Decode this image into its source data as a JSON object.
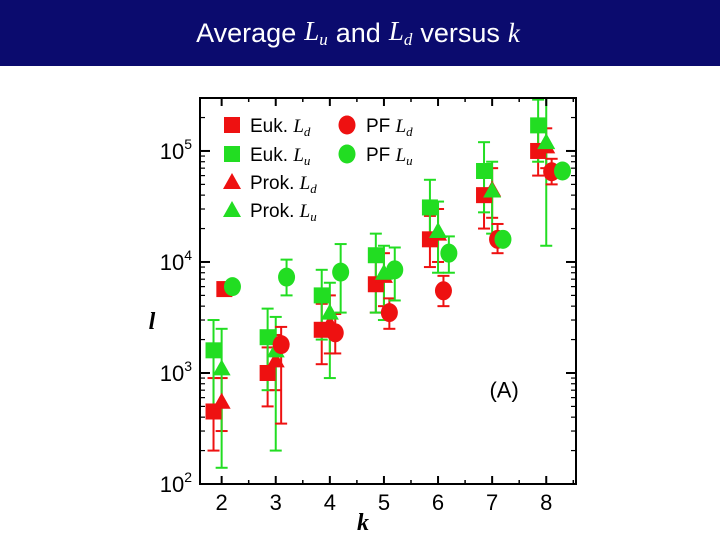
{
  "slide": {
    "title_word1": "Average",
    "title_var1": "L",
    "title_sub1": "u",
    "title_word2": "and",
    "title_var2": "L",
    "title_sub2": "d",
    "title_word3": "versus",
    "title_var3": "k"
  },
  "chart_data": {
    "type": "scatter",
    "title": "",
    "xlabel": "k",
    "ylabel": "l",
    "annotation": "(A)",
    "xlim": [
      1.6,
      8.55
    ],
    "ylim": [
      100,
      300000
    ],
    "yscale": "log",
    "xticks": [
      2,
      3,
      4,
      5,
      6,
      7,
      8
    ],
    "yticks": [
      {
        "value": 100,
        "base": "10",
        "exp": "2"
      },
      {
        "value": 1000,
        "base": "10",
        "exp": "3"
      },
      {
        "value": 10000,
        "base": "10",
        "exp": "4"
      },
      {
        "value": 100000,
        "base": "10",
        "exp": "5"
      }
    ],
    "grid": false,
    "legend_position": "top-left",
    "series": [
      {
        "name": "Euk. Ld",
        "label": "Euk.",
        "sym": "L",
        "sub": "d",
        "marker": "square",
        "color": "#ee1111",
        "points": [
          {
            "x": 1.85,
            "y": 450,
            "lo": 200,
            "hi": 900
          },
          {
            "x": 2.05,
            "y": 5700,
            "lo": 5000,
            "hi": 6500
          },
          {
            "x": 2.85,
            "y": 1000,
            "lo": 500,
            "hi": 1700
          },
          {
            "x": 3.85,
            "y": 2450,
            "lo": 1200,
            "hi": 4200
          },
          {
            "x": 4.85,
            "y": 6300,
            "lo": 3500,
            "hi": 10000
          },
          {
            "x": 5.85,
            "y": 16000,
            "lo": 9000,
            "hi": 26000
          },
          {
            "x": 6.85,
            "y": 40000,
            "lo": 20000,
            "hi": 60000
          },
          {
            "x": 7.85,
            "y": 100000,
            "lo": 60000,
            "hi": 150000
          }
        ]
      },
      {
        "name": "Euk. Lu",
        "label": "Euk.",
        "sym": "L",
        "sub": "u",
        "marker": "square",
        "color": "#22dd22",
        "points": [
          {
            "x": 1.85,
            "y": 1600,
            "lo": 500,
            "hi": 3000
          },
          {
            "x": 2.85,
            "y": 2100,
            "lo": 700,
            "hi": 3800
          },
          {
            "x": 3.85,
            "y": 5000,
            "lo": 2000,
            "hi": 8500
          },
          {
            "x": 4.85,
            "y": 11500,
            "lo": 3500,
            "hi": 18000
          },
          {
            "x": 5.85,
            "y": 31000,
            "lo": 15000,
            "hi": 55000
          },
          {
            "x": 6.85,
            "y": 66000,
            "lo": 28000,
            "hi": 120000
          },
          {
            "x": 7.85,
            "y": 170000,
            "lo": 80000,
            "hi": 290000
          }
        ]
      },
      {
        "name": "Prok. Ld",
        "label": "Prok.",
        "sym": "L",
        "sub": "d",
        "marker": "triangle",
        "color": "#ee1111",
        "points": [
          {
            "x": 2.0,
            "y": 550,
            "lo": 300,
            "hi": 900
          },
          {
            "x": 3.0,
            "y": 1300,
            "lo": 700,
            "hi": 2200
          },
          {
            "x": 4.0,
            "y": 2800,
            "lo": 1500,
            "hi": 5000
          },
          {
            "x": 5.0,
            "y": 7500,
            "lo": 4000,
            "hi": 12000
          },
          {
            "x": 6.0,
            "y": 18000,
            "lo": 10000,
            "hi": 30000
          },
          {
            "x": 7.0,
            "y": 45000,
            "lo": 25000,
            "hi": 70000
          },
          {
            "x": 8.0,
            "y": 110000,
            "lo": 70000,
            "hi": 160000
          }
        ]
      },
      {
        "name": "Prok. Lu",
        "label": "Prok.",
        "sym": "L",
        "sub": "u",
        "marker": "triangle",
        "color": "#22dd22",
        "points": [
          {
            "x": 2.0,
            "y": 1100,
            "lo": 140,
            "hi": 2500
          },
          {
            "x": 3.0,
            "y": 1600,
            "lo": 200,
            "hi": 3200
          },
          {
            "x": 4.0,
            "y": 3500,
            "lo": 900,
            "hi": 6500
          },
          {
            "x": 5.0,
            "y": 8000,
            "lo": 3000,
            "hi": 14000
          },
          {
            "x": 6.0,
            "y": 19000,
            "lo": 8000,
            "hi": 35000
          },
          {
            "x": 7.0,
            "y": 44000,
            "lo": 18000,
            "hi": 80000
          },
          {
            "x": 8.0,
            "y": 120000,
            "lo": 14000,
            "hi": 300000
          }
        ]
      },
      {
        "name": "PF Ld",
        "label": "PF",
        "sym": "L",
        "sub": "d",
        "marker": "circle",
        "color": "#ee1111",
        "points": [
          {
            "x": 3.1,
            "y": 1800,
            "lo": 350,
            "hi": 2600
          },
          {
            "x": 4.1,
            "y": 2300,
            "lo": 1500,
            "hi": 3400
          },
          {
            "x": 5.1,
            "y": 3500,
            "lo": 2500,
            "hi": 4700
          },
          {
            "x": 6.1,
            "y": 5500,
            "lo": 4000,
            "hi": 7500
          },
          {
            "x": 7.1,
            "y": 16000,
            "lo": 12000,
            "hi": 22000
          },
          {
            "x": 8.1,
            "y": 65000,
            "lo": 50000,
            "hi": 85000
          }
        ]
      },
      {
        "name": "PF Lu",
        "label": "PF",
        "sym": "L",
        "sub": "u",
        "marker": "circle",
        "color": "#22dd22",
        "points": [
          {
            "x": 2.2,
            "y": 6000,
            "lo": 5500,
            "hi": 6600
          },
          {
            "x": 3.2,
            "y": 7300,
            "lo": 5000,
            "hi": 10500
          },
          {
            "x": 4.2,
            "y": 8100,
            "lo": 3500,
            "hi": 14500
          },
          {
            "x": 5.2,
            "y": 8500,
            "lo": 4500,
            "hi": 13500
          },
          {
            "x": 6.2,
            "y": 12000,
            "lo": 8000,
            "hi": 17000
          },
          {
            "x": 7.2,
            "y": 16000,
            "lo": 15000,
            "hi": 17000
          },
          {
            "x": 8.3,
            "y": 66000,
            "lo": 60000,
            "hi": 72000
          }
        ]
      }
    ]
  }
}
